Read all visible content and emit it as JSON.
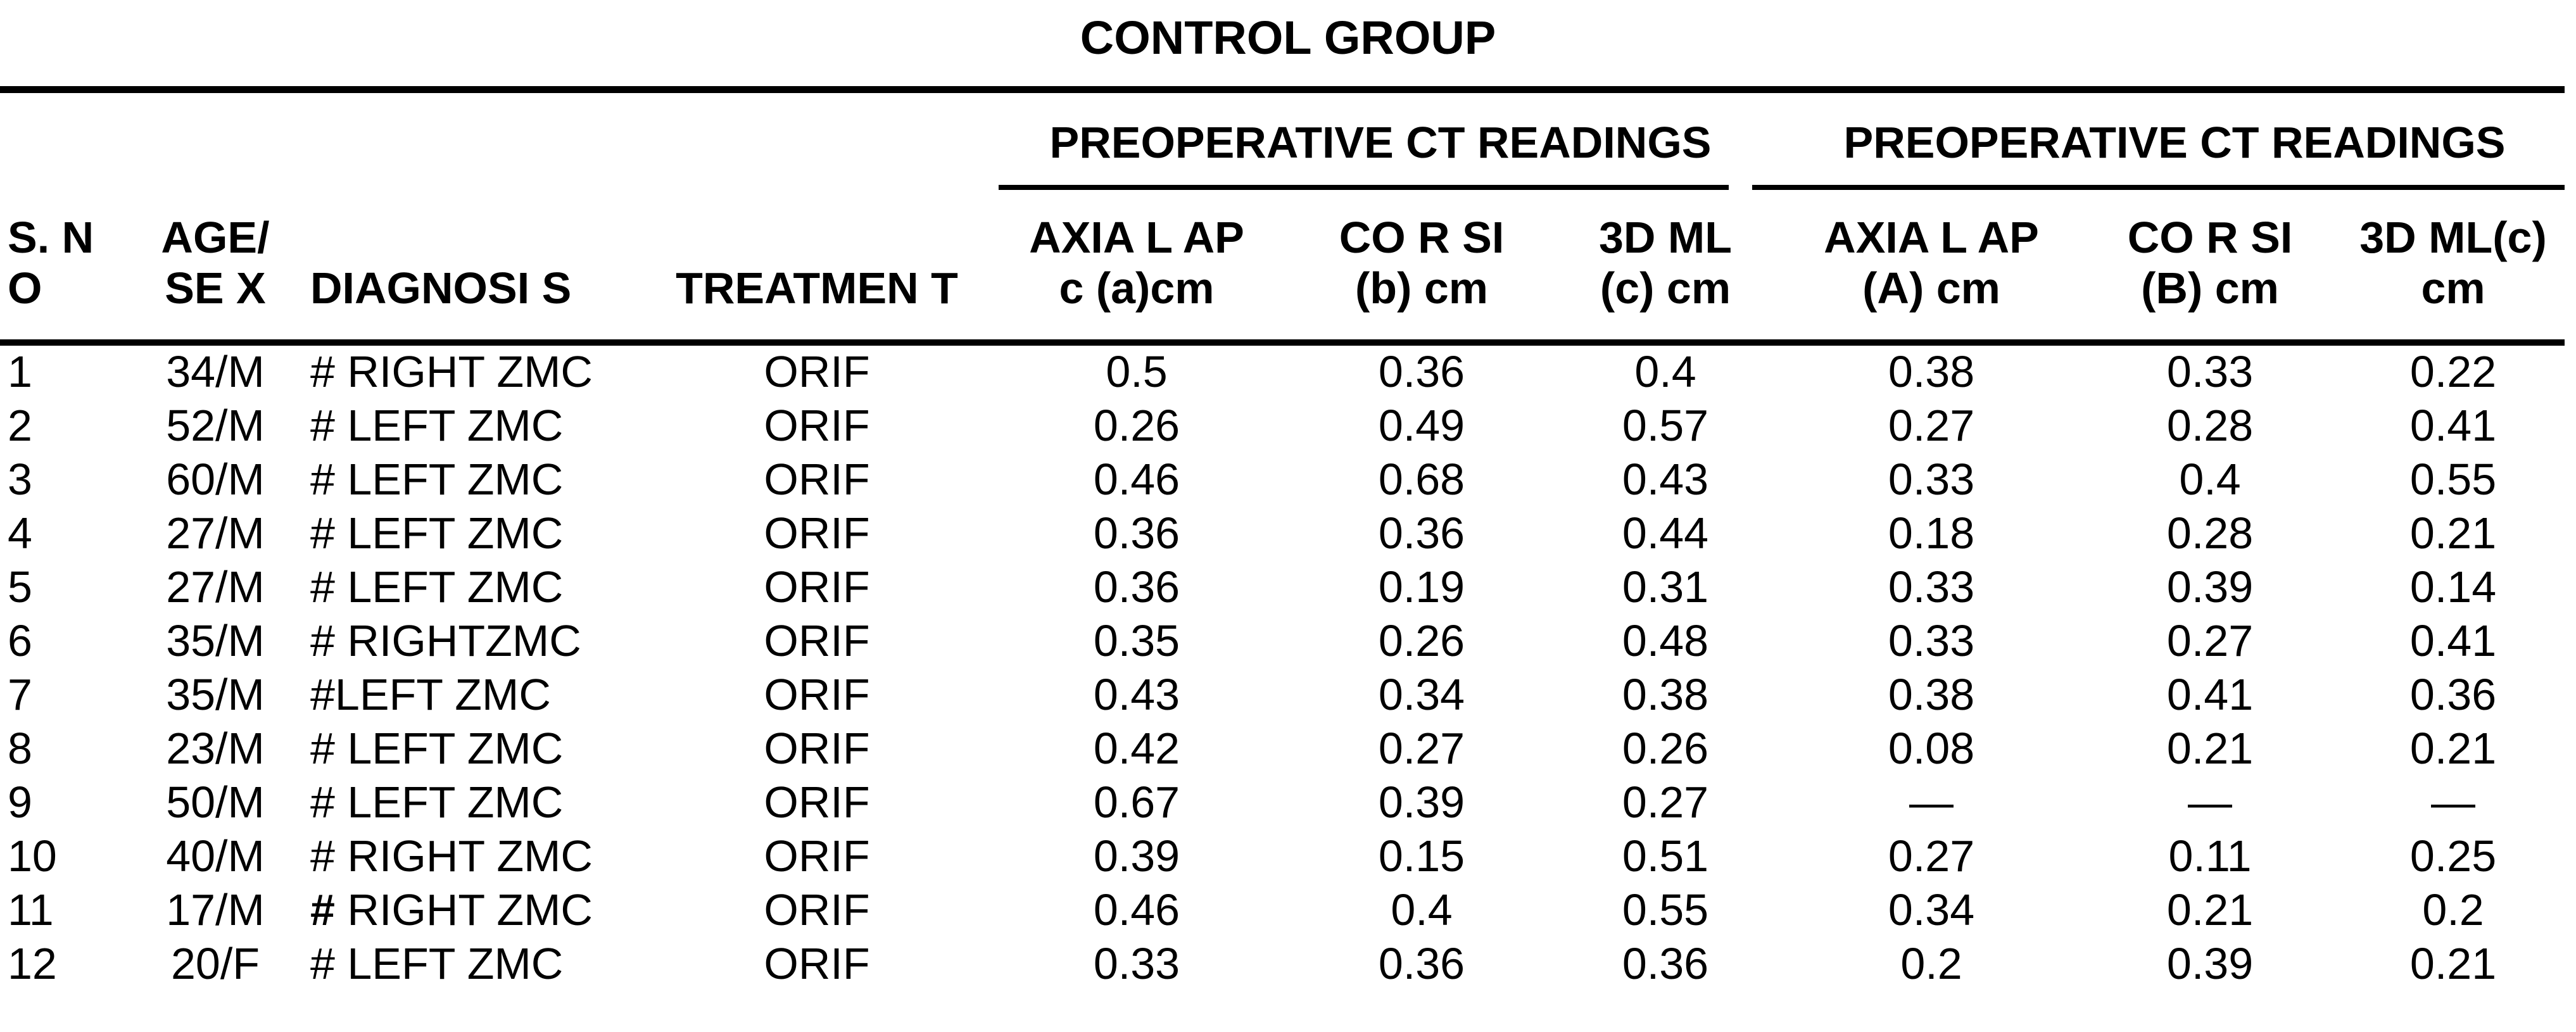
{
  "title": "CONTROL GROUP",
  "colors": {
    "text": "#000000",
    "background": "#ffffff",
    "rule": "#000000"
  },
  "table": {
    "group_headers": [
      {
        "label": "PREOPERATIVE CT READINGS"
      },
      {
        "label": "PREOPERATIVE CT READINGS"
      }
    ],
    "columns": [
      {
        "key": "col-s-no",
        "line1": "S. N",
        "line2": "O"
      },
      {
        "key": "col-age-sex",
        "line1": "AGE/",
        "line2": "SE X"
      },
      {
        "key": "col-diagnosis",
        "line1": "",
        "line2": "DIAGNOSI S"
      },
      {
        "key": "col-treatment",
        "line1": "",
        "line2": "TREATMEN T"
      },
      {
        "key": "col-axial-ap-a",
        "line1": "AXIA L AP",
        "line2": "c (a)cm"
      },
      {
        "key": "col-cor-si-b",
        "line1": "CO R SI",
        "line2": "(b) cm"
      },
      {
        "key": "col-3d-ml-c",
        "line1": "3D ML",
        "line2": "(c) cm"
      },
      {
        "key": "col-axial-ap-A",
        "line1": "AXIA L AP",
        "line2": "(A) cm"
      },
      {
        "key": "col-cor-si-B",
        "line1": "CO R SI",
        "line2": "(B) cm"
      },
      {
        "key": "col-3d-ml-c2",
        "line1": "3D ML(c)",
        "line2": "cm"
      }
    ],
    "rows": [
      {
        "cells": [
          "1",
          "34/M",
          "# RIGHT ZMC",
          "ORIF",
          "0.5",
          "0.36",
          "0.4",
          "0.38",
          "0.33",
          "0.22"
        ]
      },
      {
        "cells": [
          "2",
          "52/M",
          "# LEFT ZMC",
          "ORIF",
          "0.26",
          "0.49",
          "0.57",
          "0.27",
          "0.28",
          "0.41"
        ]
      },
      {
        "cells": [
          "3",
          "60/M",
          "# LEFT ZMC",
          "ORIF",
          "0.46",
          "0.68",
          "0.43",
          "0.33",
          "0.4",
          "0.55"
        ]
      },
      {
        "cells": [
          "4",
          "27/M",
          "# LEFT ZMC",
          "ORIF",
          "0.36",
          "0.36",
          "0.44",
          "0.18",
          "0.28",
          "0.21"
        ]
      },
      {
        "cells": [
          "5",
          "27/M",
          "# LEFT ZMC",
          "ORIF",
          "0.36",
          "0.19",
          "0.31",
          "0.33",
          "0.39",
          "0.14"
        ]
      },
      {
        "cells": [
          "6",
          "35/M",
          "# RIGHTZMC",
          "ORIF",
          "0.35",
          "0.26",
          "0.48",
          "0.33",
          "0.27",
          "0.41"
        ]
      },
      {
        "cells": [
          "7",
          "35/M",
          "#LEFT ZMC",
          "ORIF",
          "0.43",
          "0.34",
          "0.38",
          "0.38",
          "0.41",
          "0.36"
        ]
      },
      {
        "cells": [
          "8",
          "23/M",
          "# LEFT ZMC",
          "ORIF",
          "0.42",
          "0.27",
          "0.26",
          "0.08",
          "0.21",
          "0.21"
        ]
      },
      {
        "cells": [
          "9",
          "50/M",
          "# LEFT ZMC",
          "ORIF",
          "0.67",
          "0.39",
          "0.27",
          "—",
          "—",
          "—"
        ]
      },
      {
        "cells": [
          "10",
          "40/M",
          "# RIGHT ZMC",
          "ORIF",
          "0.39",
          "0.15",
          "0.51",
          "0.27",
          "0.11",
          "0.25"
        ]
      },
      {
        "cells": [
          "11",
          "17/M",
          "# RIGHT ZMC",
          "ORIF",
          "0.46",
          "0.4",
          "0.55",
          "0.34",
          "0.21",
          "0.2"
        ],
        "hash_bold": true
      },
      {
        "cells": [
          "12",
          "20/F",
          "# LEFT ZMC",
          "ORIF",
          "0.33",
          "0.36",
          "0.36",
          "0.2",
          "0.39",
          "0.21"
        ]
      }
    ]
  }
}
